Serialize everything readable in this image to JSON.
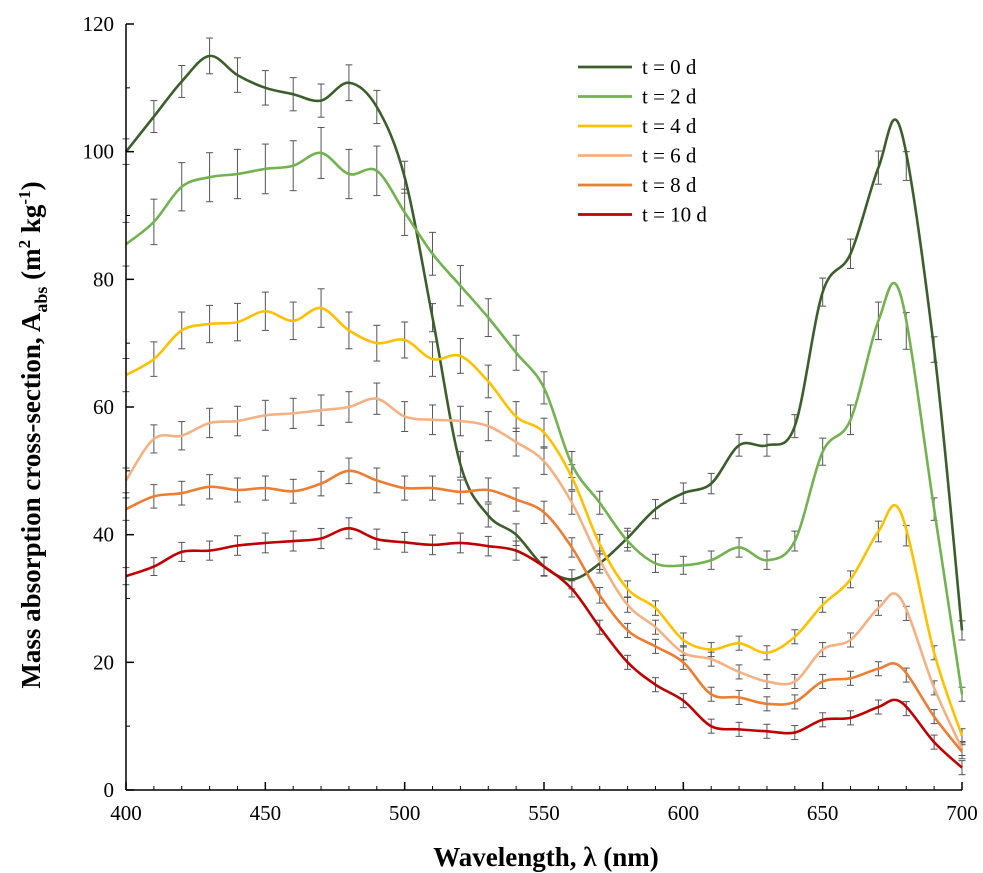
{
  "chart_data": {
    "type": "line",
    "xlabel": "Wavelength, λ (nm)",
    "ylabel": {
      "main": "Mass absorption cross-section, A",
      "sub": "abs",
      "unit_open": " (m",
      "unit_sup1": "2",
      "unit_mid": " kg",
      "unit_sup2": "-1",
      "unit_close": ")"
    },
    "xlim": [
      400,
      700
    ],
    "ylim": [
      0,
      120
    ],
    "xticks": [
      "400",
      "450",
      "500",
      "550",
      "600",
      "650",
      "700"
    ],
    "yticks": [
      "0",
      "20",
      "40",
      "60",
      "80",
      "100",
      "120"
    ],
    "legend_position": "top-right",
    "grid": false,
    "error_bars": true,
    "error_bar_x": [
      400,
      410,
      420,
      430,
      440,
      450,
      460,
      470,
      480,
      490,
      500,
      510,
      520,
      530,
      540,
      550,
      560,
      570,
      580,
      590,
      600,
      610,
      620,
      630,
      640,
      650,
      660,
      670,
      680,
      690,
      700
    ],
    "series": [
      {
        "name": "t = 0 d",
        "color": "#3b5e2b",
        "x": [
          400,
          410,
          420,
          430,
          440,
          450,
          460,
          470,
          480,
          490,
          500,
          510,
          520,
          530,
          540,
          550,
          560,
          570,
          580,
          590,
          600,
          610,
          620,
          630,
          640,
          650,
          660,
          670,
          678,
          690,
          700
        ],
        "values": [
          100,
          105.5,
          111,
          115,
          112,
          110,
          109,
          108,
          110.8,
          107,
          96,
          74,
          51,
          43,
          40,
          35,
          33,
          35.5,
          39.5,
          44,
          46.5,
          48,
          54,
          54,
          57,
          78,
          84,
          97.5,
          103.5,
          69,
          25
        ],
        "errors": [
          2,
          2.5,
          2.5,
          2.8,
          2.7,
          2.7,
          2.6,
          2.6,
          2.8,
          2.6,
          2.5,
          2.2,
          2,
          1.8,
          1.7,
          1.5,
          1.5,
          1.5,
          1.5,
          1.5,
          1.6,
          1.6,
          1.7,
          1.7,
          1.8,
          2.2,
          2.3,
          2.6,
          2.3,
          2,
          1.5
        ]
      },
      {
        "name": "t = 2 d",
        "color": "#72b24f",
        "x": [
          400,
          410,
          420,
          430,
          440,
          450,
          460,
          470,
          480,
          490,
          500,
          510,
          520,
          530,
          540,
          550,
          560,
          570,
          580,
          590,
          600,
          610,
          620,
          630,
          640,
          650,
          660,
          670,
          678,
          690,
          700
        ],
        "values": [
          85.5,
          89,
          94.5,
          96,
          96.5,
          97.3,
          97.8,
          99.8,
          96.5,
          97,
          90.5,
          84,
          79,
          74,
          68.5,
          63,
          51,
          45,
          39,
          35.5,
          35.2,
          36,
          38,
          36,
          39,
          53,
          58,
          73.5,
          77.5,
          44,
          15
        ]
      },
      {
        "name": "t = 4 d",
        "color": "#ffc000",
        "x": [
          400,
          410,
          420,
          430,
          440,
          450,
          460,
          470,
          480,
          490,
          500,
          510,
          520,
          530,
          540,
          550,
          560,
          570,
          580,
          590,
          600,
          610,
          620,
          630,
          640,
          650,
          660,
          670,
          678,
          690,
          700
        ],
        "values": [
          65,
          67.5,
          72,
          73,
          73.3,
          75,
          73.5,
          75.5,
          72,
          70,
          70.5,
          67.5,
          68,
          64,
          58.5,
          56,
          49,
          38.5,
          31.5,
          28.5,
          23.5,
          22,
          23,
          21.5,
          24,
          29,
          33,
          40.5,
          43.5,
          21.5,
          8.5
        ]
      },
      {
        "name": "t = 6 d",
        "color": "#f4b183",
        "x": [
          400,
          410,
          420,
          430,
          440,
          450,
          460,
          470,
          480,
          490,
          500,
          510,
          520,
          530,
          540,
          550,
          560,
          570,
          580,
          590,
          600,
          610,
          620,
          630,
          640,
          650,
          660,
          670,
          678,
          690,
          700
        ],
        "values": [
          48.5,
          55,
          55.5,
          57.5,
          57.8,
          58.7,
          59,
          59.5,
          60,
          61.3,
          58.5,
          58,
          57.8,
          57,
          54.5,
          51.5,
          45,
          36,
          29,
          25.5,
          21.5,
          20.5,
          18.5,
          17,
          17,
          22,
          23.5,
          28.5,
          30,
          16,
          6.5
        ]
      },
      {
        "name": "t = 8 d",
        "color": "#ed7d31",
        "x": [
          400,
          410,
          420,
          430,
          440,
          450,
          460,
          470,
          480,
          490,
          500,
          510,
          520,
          530,
          540,
          550,
          560,
          570,
          580,
          590,
          600,
          610,
          620,
          630,
          640,
          650,
          660,
          670,
          678,
          690,
          700
        ],
        "values": [
          44,
          46,
          46.5,
          47.5,
          47,
          47.3,
          46.8,
          48,
          50,
          48.5,
          47.3,
          47.3,
          46.7,
          47,
          45.5,
          43.5,
          38,
          30.5,
          25,
          22.5,
          20,
          15,
          14.5,
          13.5,
          13.8,
          17,
          17.5,
          19,
          19.3,
          11.5,
          6
        ]
      },
      {
        "name": "t = 10 d",
        "color": "#c00000",
        "x": [
          400,
          410,
          420,
          430,
          440,
          450,
          460,
          470,
          480,
          490,
          500,
          510,
          520,
          530,
          540,
          550,
          560,
          570,
          580,
          590,
          600,
          610,
          620,
          630,
          640,
          650,
          660,
          670,
          678,
          690,
          700
        ],
        "values": [
          33.5,
          35,
          37.3,
          37.5,
          38.3,
          38.7,
          39,
          39.4,
          41,
          39.3,
          38.8,
          38.4,
          38.7,
          38.2,
          37.5,
          35,
          31.5,
          25.5,
          20,
          16.5,
          14,
          10,
          9.5,
          9.2,
          9,
          11,
          11.3,
          13,
          13.8,
          7.5,
          3.5
        ]
      }
    ]
  }
}
